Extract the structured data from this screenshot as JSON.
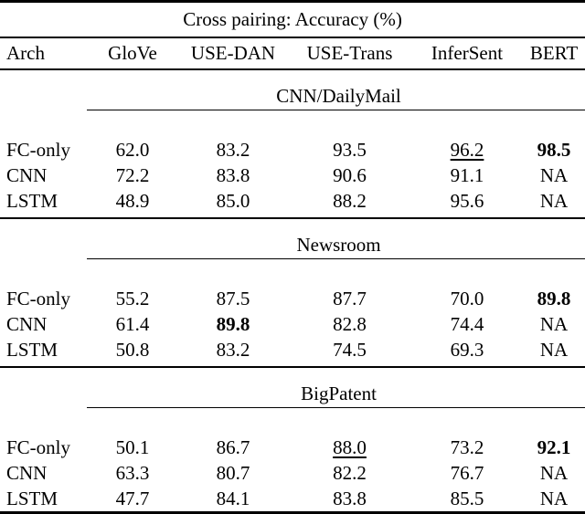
{
  "table": {
    "title": "Cross pairing: Accuracy (%)",
    "columns": [
      "Arch",
      "GloVe",
      "USE-DAN",
      "USE-Trans",
      "InferSent",
      "BERT"
    ],
    "sections": [
      {
        "name": "CNN/DailyMail",
        "rows": [
          {
            "arch": "FC-only",
            "values": [
              {
                "text": "62.0"
              },
              {
                "text": "83.2"
              },
              {
                "text": "93.5"
              },
              {
                "text": "96.2",
                "underline": true
              },
              {
                "text": "98.5",
                "bold": true
              }
            ]
          },
          {
            "arch": "CNN",
            "values": [
              {
                "text": "72.2"
              },
              {
                "text": "83.8"
              },
              {
                "text": "90.6"
              },
              {
                "text": "91.1"
              },
              {
                "text": "NA"
              }
            ]
          },
          {
            "arch": "LSTM",
            "values": [
              {
                "text": "48.9"
              },
              {
                "text": "85.0"
              },
              {
                "text": "88.2"
              },
              {
                "text": "95.6"
              },
              {
                "text": "NA"
              }
            ]
          }
        ]
      },
      {
        "name": "Newsroom",
        "rows": [
          {
            "arch": "FC-only",
            "values": [
              {
                "text": "55.2"
              },
              {
                "text": "87.5"
              },
              {
                "text": "87.7"
              },
              {
                "text": "70.0"
              },
              {
                "text": "89.8",
                "bold": true
              }
            ]
          },
          {
            "arch": "CNN",
            "values": [
              {
                "text": "61.4"
              },
              {
                "text": "89.8",
                "bold": true
              },
              {
                "text": "82.8"
              },
              {
                "text": "74.4"
              },
              {
                "text": "NA"
              }
            ]
          },
          {
            "arch": "LSTM",
            "values": [
              {
                "text": "50.8"
              },
              {
                "text": "83.2"
              },
              {
                "text": "74.5"
              },
              {
                "text": "69.3"
              },
              {
                "text": "NA"
              }
            ]
          }
        ]
      },
      {
        "name": "BigPatent",
        "rows": [
          {
            "arch": "FC-only",
            "values": [
              {
                "text": "50.1"
              },
              {
                "text": "86.7"
              },
              {
                "text": "88.0",
                "underline": true
              },
              {
                "text": "73.2"
              },
              {
                "text": "92.1",
                "bold": true
              }
            ]
          },
          {
            "arch": "CNN",
            "values": [
              {
                "text": "63.3"
              },
              {
                "text": "80.7"
              },
              {
                "text": "82.2"
              },
              {
                "text": "76.7"
              },
              {
                "text": "NA"
              }
            ]
          },
          {
            "arch": "LSTM",
            "values": [
              {
                "text": "47.7"
              },
              {
                "text": "84.1"
              },
              {
                "text": "83.8"
              },
              {
                "text": "85.5"
              },
              {
                "text": "NA"
              }
            ]
          }
        ]
      }
    ]
  },
  "chart_data": {
    "type": "table",
    "title": "Cross pairing: Accuracy (%)",
    "columns": [
      "Arch",
      "GloVe",
      "USE-DAN",
      "USE-Trans",
      "InferSent",
      "BERT"
    ],
    "sections": [
      {
        "name": "CNN/DailyMail",
        "rows": [
          [
            "FC-only",
            62.0,
            83.2,
            93.5,
            96.2,
            98.5
          ],
          [
            "CNN",
            72.2,
            83.8,
            90.6,
            91.1,
            "NA"
          ],
          [
            "LSTM",
            48.9,
            85.0,
            88.2,
            95.6,
            "NA"
          ]
        ]
      },
      {
        "name": "Newsroom",
        "rows": [
          [
            "FC-only",
            55.2,
            87.5,
            87.7,
            70.0,
            89.8
          ],
          [
            "CNN",
            61.4,
            89.8,
            82.8,
            74.4,
            "NA"
          ],
          [
            "LSTM",
            50.8,
            83.2,
            74.5,
            69.3,
            "NA"
          ]
        ]
      },
      {
        "name": "BigPatent",
        "rows": [
          [
            "FC-only",
            50.1,
            86.7,
            88.0,
            73.2,
            92.1
          ],
          [
            "CNN",
            63.3,
            80.7,
            82.2,
            76.7,
            "NA"
          ],
          [
            "LSTM",
            47.7,
            84.1,
            83.8,
            85.5,
            "NA"
          ]
        ]
      }
    ],
    "emphasis": {
      "bold_best": [
        "CNN/DailyMail FC-only BERT 98.5",
        "Newsroom FC-only BERT 89.8",
        "Newsroom CNN USE-DAN 89.8",
        "BigPatent FC-only BERT 92.1"
      ],
      "underline_second_best": [
        "CNN/DailyMail FC-only InferSent 96.2",
        "BigPatent FC-only USE-Trans 88.0"
      ]
    }
  },
  "colors": {
    "background": "#ffffff",
    "text": "#000000",
    "rule": "#000000"
  }
}
